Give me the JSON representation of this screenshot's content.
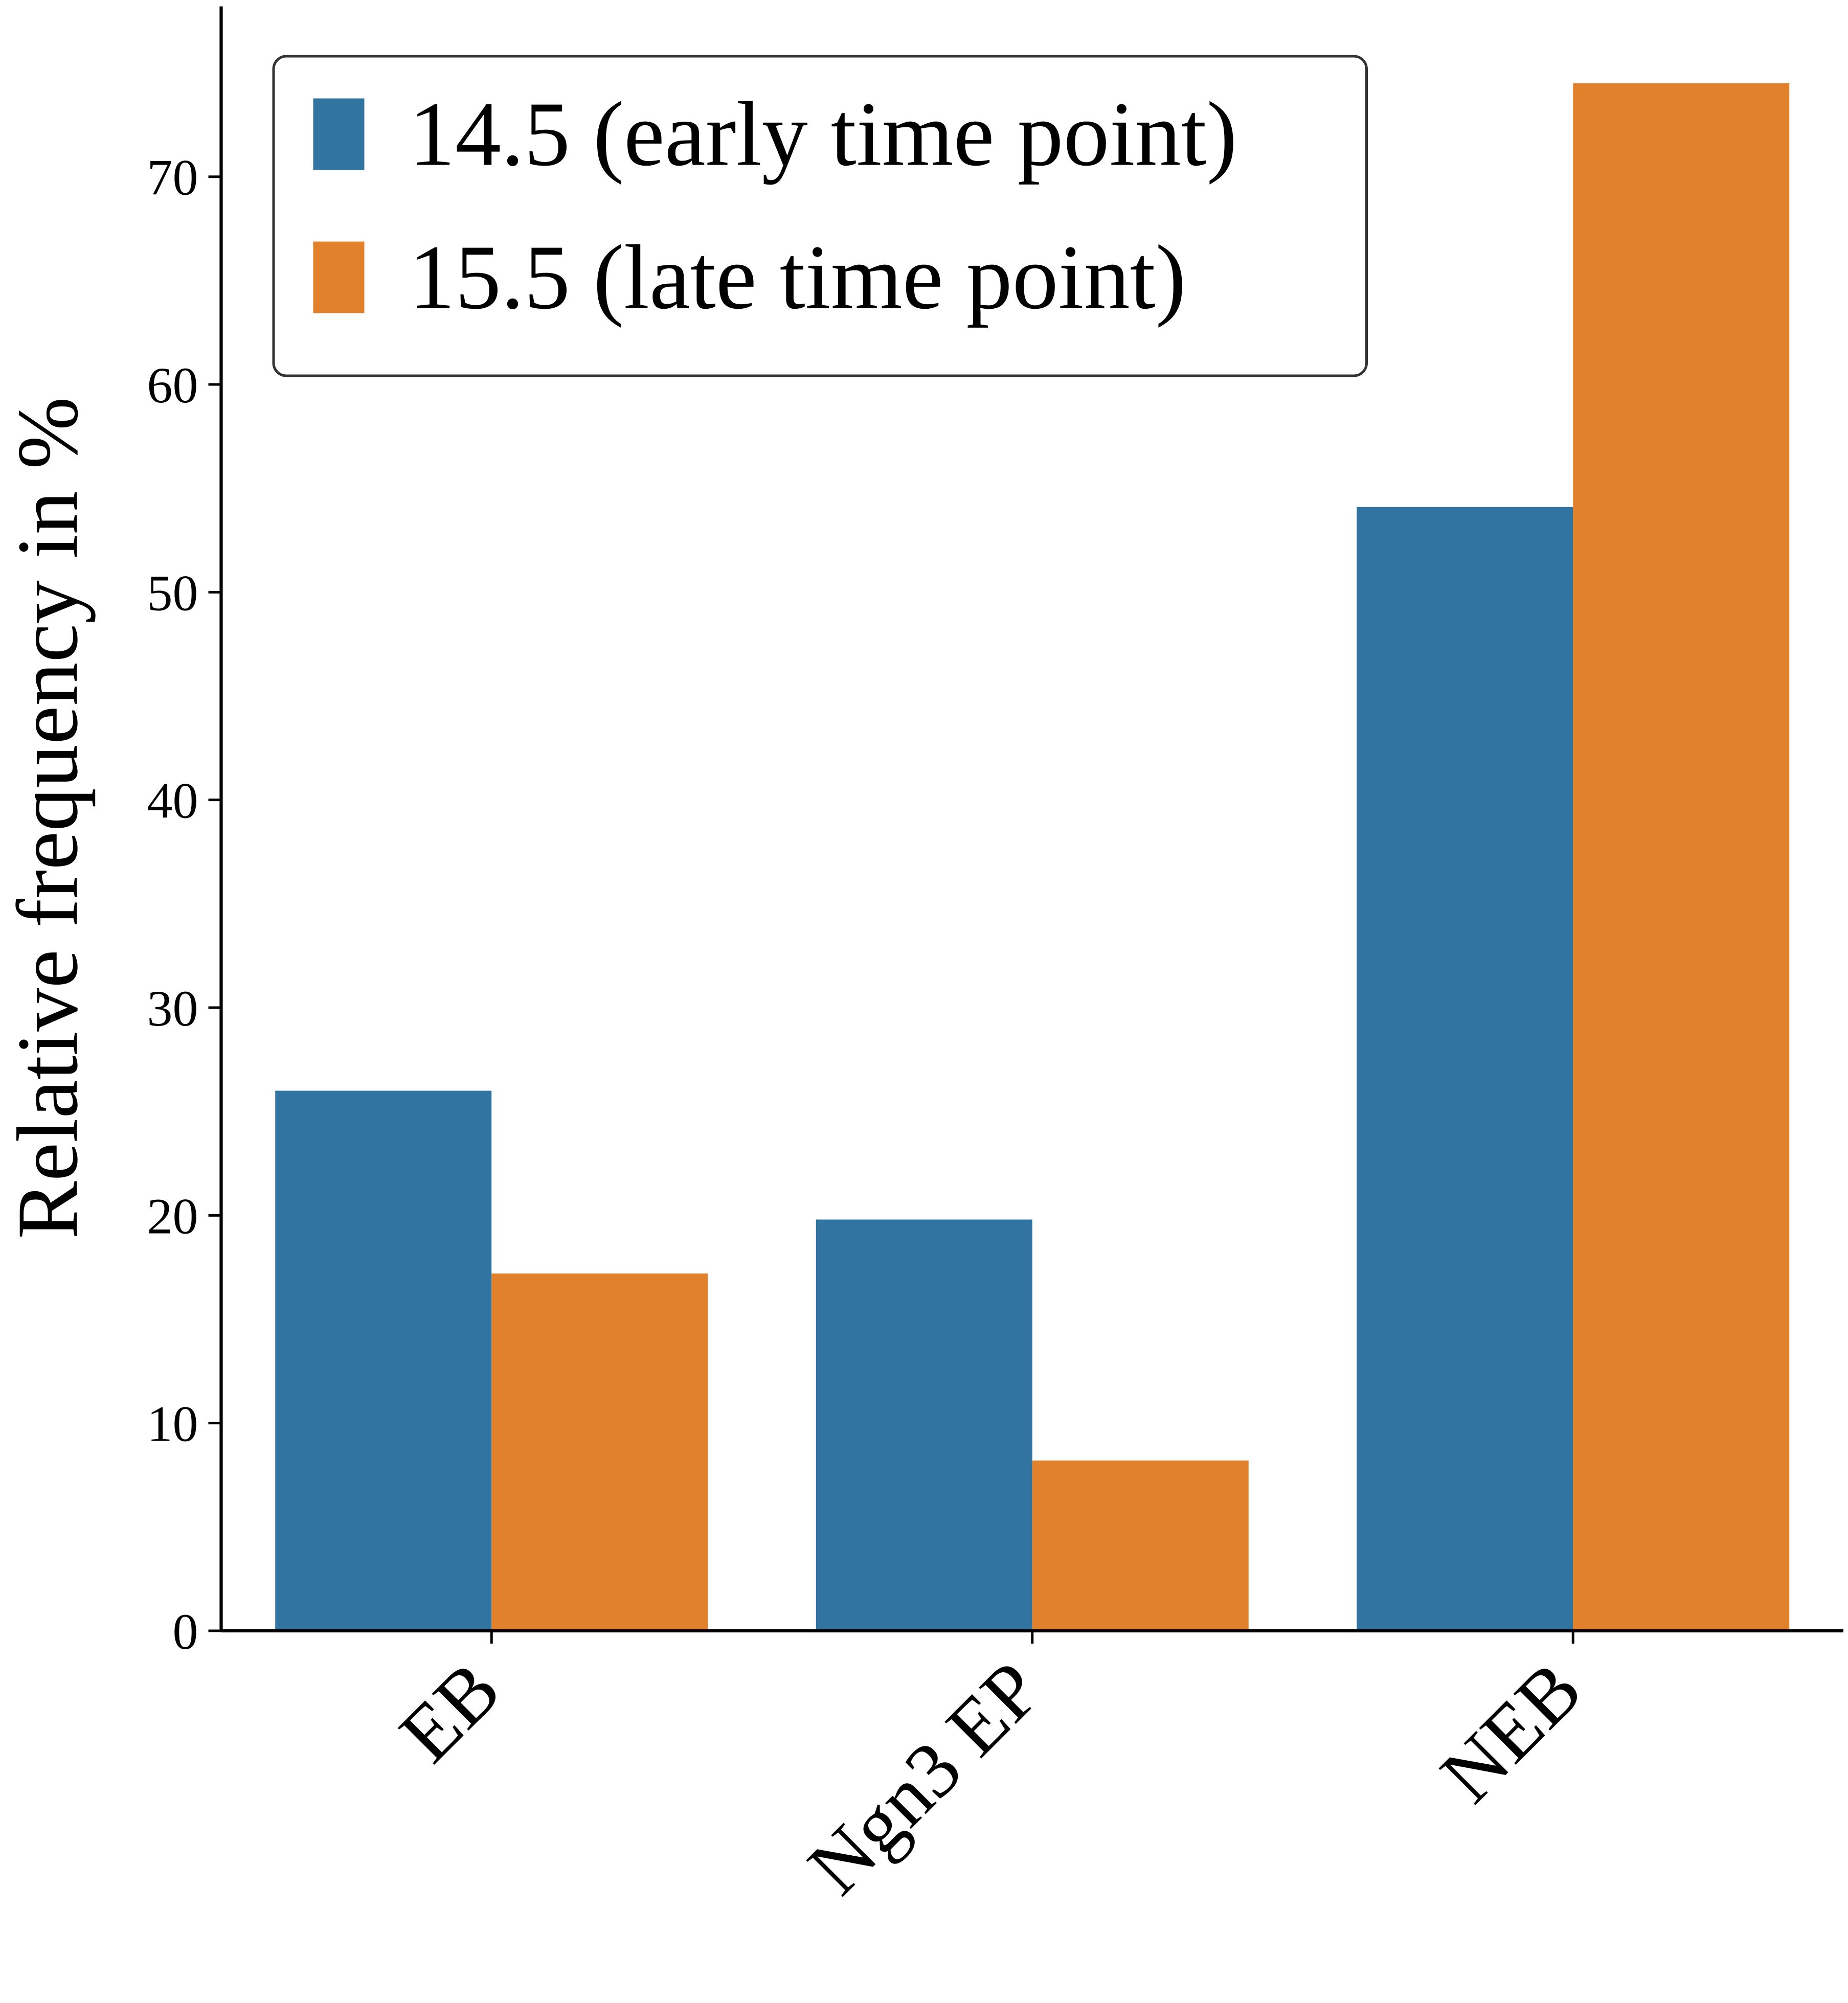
{
  "chart_data": {
    "type": "bar",
    "ylabel": "Relative frequency in %",
    "categories": [
      "EB",
      "Ngn3 EP",
      "NEB"
    ],
    "series": [
      {
        "name": "14.5 (early time point)",
        "color": "#3274a1",
        "values": [
          26.0,
          19.8,
          54.1
        ]
      },
      {
        "name": "15.5 (late time point)",
        "color": "#e1812c",
        "values": [
          17.2,
          8.2,
          74.5
        ]
      }
    ],
    "ylim": [
      0,
      78.2
    ],
    "yticks": [
      0,
      10,
      20,
      30,
      40,
      50,
      60,
      70
    ],
    "legend": "upper left",
    "grid": false
  }
}
